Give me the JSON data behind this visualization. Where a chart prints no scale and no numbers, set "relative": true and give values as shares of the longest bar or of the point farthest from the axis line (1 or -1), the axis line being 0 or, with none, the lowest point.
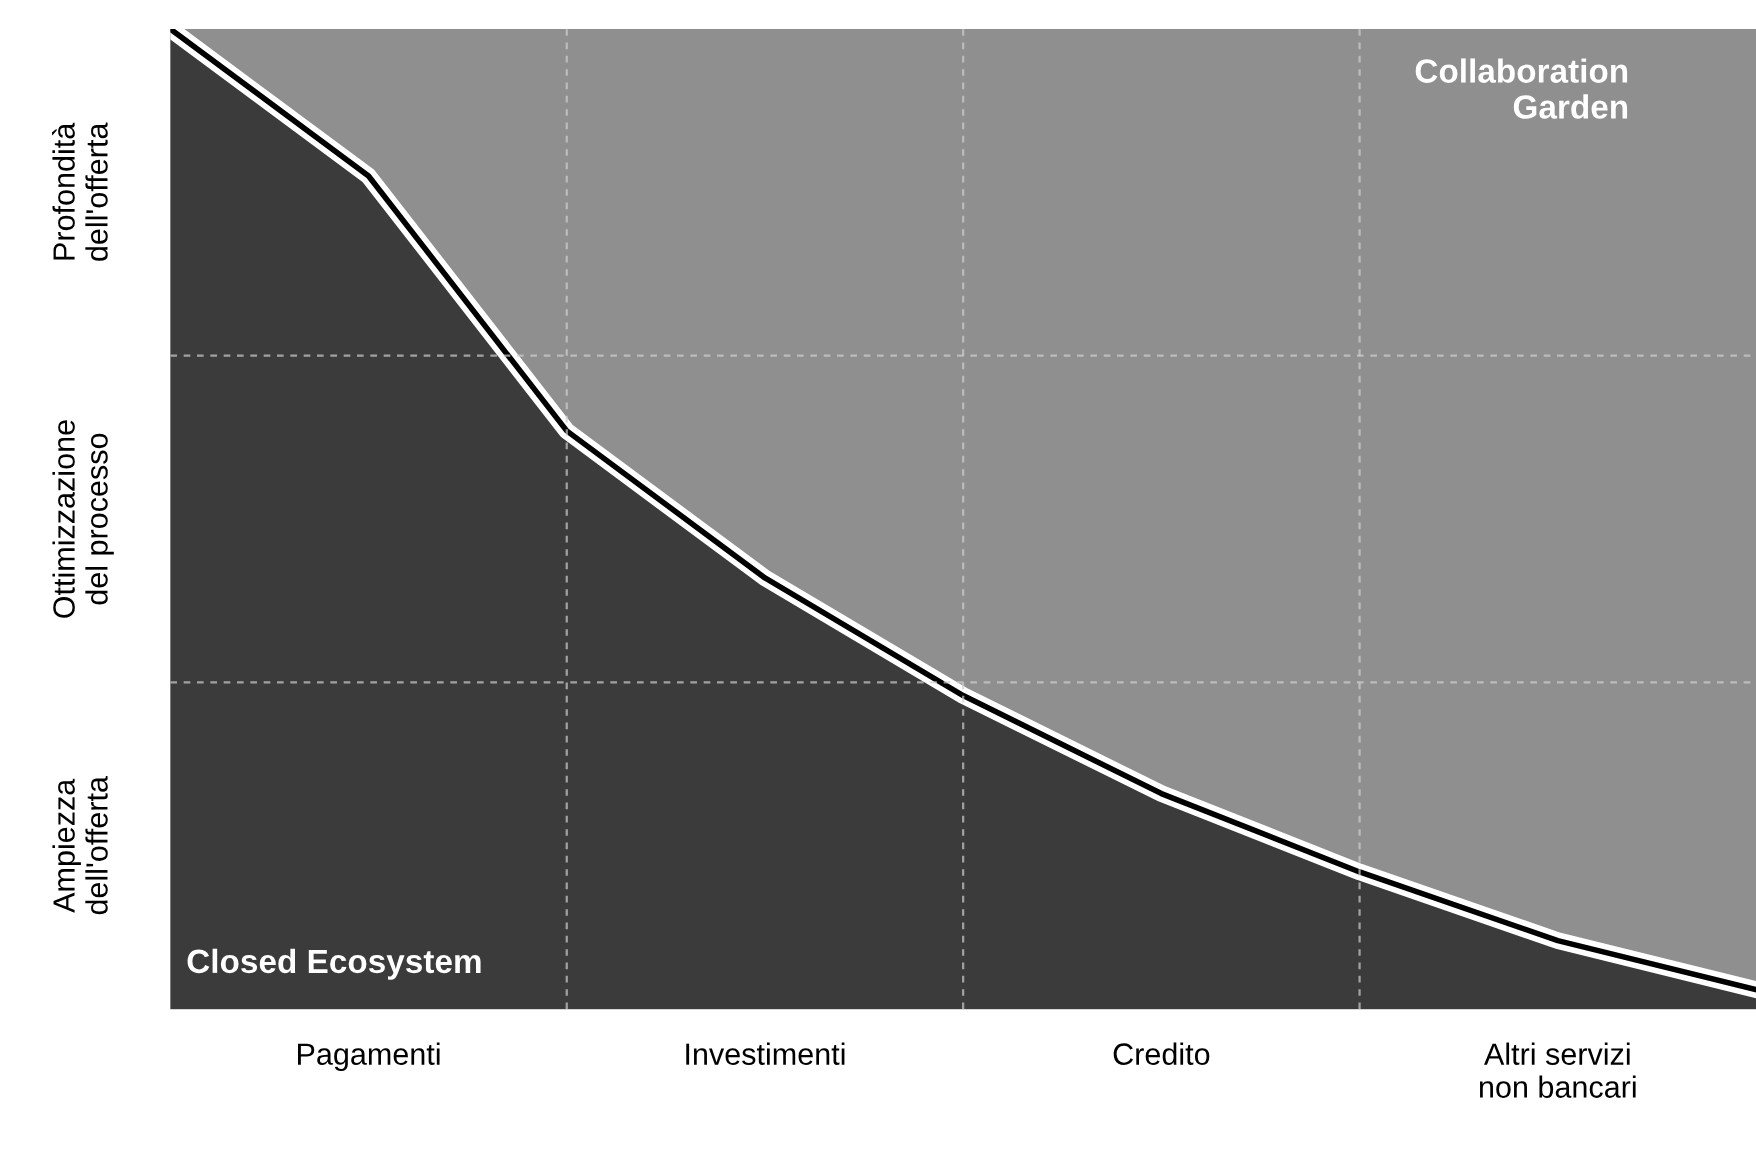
{
  "chart_data": {
    "type": "area",
    "relative": true,
    "categories": [
      null,
      "Pagamenti",
      null,
      "Investimenti",
      null,
      "Credito",
      null,
      "Altri servizi\nnon bancari",
      null
    ],
    "series": [
      {
        "color": "#3b3b3b",
        "values": [
          1.0,
          0.85,
          0.59,
          0.44,
          0.32,
          0.22,
          0.14,
          0.07,
          0.02
        ]
      }
    ],
    "annotations": [
      "Profondità\ndell'offerta",
      "Ottimizzazione\ndel processo",
      "Ampiezza\ndell'offerta",
      "Collaboration\nGarden",
      "Closed Ecosystem"
    ],
    "grid": true
  }
}
